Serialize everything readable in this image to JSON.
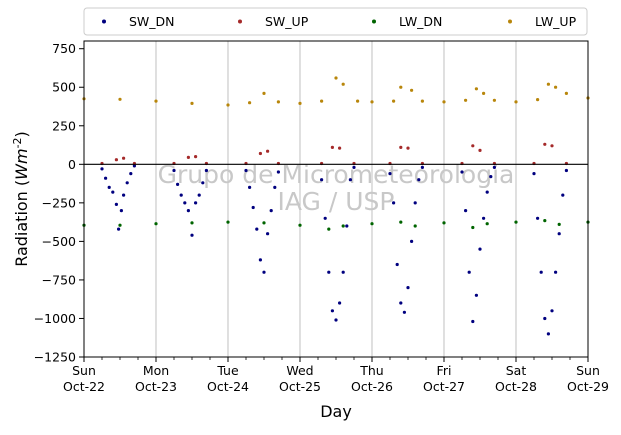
{
  "chart_data": {
    "type": "scatter",
    "title": "",
    "xlabel": "Day",
    "ylabel": "Radiation",
    "ylabel_unit": "Wm",
    "ylabel_unit_exp": "-2",
    "ylim": [
      -1250,
      800
    ],
    "yticks": [
      -1250,
      -1000,
      -750,
      -500,
      -250,
      0,
      250,
      500,
      750
    ],
    "xlim_days": [
      0,
      7
    ],
    "xticks": [
      {
        "day": 0,
        "line1": "Sun",
        "line2": "Oct-22"
      },
      {
        "day": 1,
        "line1": "Mon",
        "line2": "Oct-23"
      },
      {
        "day": 2,
        "line1": "Tue",
        "line2": "Oct-24"
      },
      {
        "day": 3,
        "line1": "Wed",
        "line2": "Oct-25"
      },
      {
        "day": 4,
        "line1": "Thu",
        "line2": "Oct-26"
      },
      {
        "day": 5,
        "line1": "Fri",
        "line2": "Oct-27"
      },
      {
        "day": 6,
        "line1": "Sat",
        "line2": "Oct-28"
      },
      {
        "day": 7,
        "line1": "Sun",
        "line2": "Oct-29"
      }
    ],
    "grid": "vertical",
    "zero_line": true,
    "legend_placement": "top, outside",
    "watermark": [
      "Grupo de Micrometeorologia",
      "IAG / USP"
    ],
    "series": [
      {
        "name": "SW_DN",
        "color": "#00007f",
        "points": [
          [
            0.25,
            -30
          ],
          [
            0.3,
            -90
          ],
          [
            0.35,
            -150
          ],
          [
            0.4,
            -180
          ],
          [
            0.45,
            -260
          ],
          [
            0.48,
            -420
          ],
          [
            0.52,
            -300
          ],
          [
            0.55,
            -200
          ],
          [
            0.6,
            -120
          ],
          [
            0.65,
            -60
          ],
          [
            0.7,
            -10
          ],
          [
            1.25,
            -40
          ],
          [
            1.3,
            -130
          ],
          [
            1.35,
            -200
          ],
          [
            1.4,
            -250
          ],
          [
            1.45,
            -300
          ],
          [
            1.5,
            -460
          ],
          [
            1.55,
            -250
          ],
          [
            1.6,
            -200
          ],
          [
            1.65,
            -120
          ],
          [
            1.7,
            -40
          ],
          [
            2.25,
            -40
          ],
          [
            2.3,
            -150
          ],
          [
            2.35,
            -280
          ],
          [
            2.4,
            -420
          ],
          [
            2.45,
            -620
          ],
          [
            2.5,
            -700
          ],
          [
            2.55,
            -450
          ],
          [
            2.6,
            -300
          ],
          [
            2.65,
            -150
          ],
          [
            2.7,
            -50
          ],
          [
            3.3,
            -100
          ],
          [
            3.35,
            -350
          ],
          [
            3.4,
            -700
          ],
          [
            3.45,
            -950
          ],
          [
            3.5,
            -1010
          ],
          [
            3.55,
            -900
          ],
          [
            3.6,
            -700
          ],
          [
            3.65,
            -400
          ],
          [
            3.7,
            -100
          ],
          [
            3.75,
            -20
          ],
          [
            4.25,
            -60
          ],
          [
            4.3,
            -250
          ],
          [
            4.35,
            -650
          ],
          [
            4.4,
            -900
          ],
          [
            4.45,
            -960
          ],
          [
            4.5,
            -800
          ],
          [
            4.55,
            -500
          ],
          [
            4.6,
            -250
          ],
          [
            4.65,
            -100
          ],
          [
            4.7,
            -20
          ],
          [
            5.25,
            -50
          ],
          [
            5.3,
            -300
          ],
          [
            5.35,
            -700
          ],
          [
            5.4,
            -1020
          ],
          [
            5.45,
            -850
          ],
          [
            5.5,
            -550
          ],
          [
            5.55,
            -350
          ],
          [
            5.6,
            -180
          ],
          [
            5.65,
            -80
          ],
          [
            5.7,
            -20
          ],
          [
            6.25,
            -60
          ],
          [
            6.3,
            -350
          ],
          [
            6.35,
            -700
          ],
          [
            6.4,
            -1000
          ],
          [
            6.45,
            -1100
          ],
          [
            6.5,
            -950
          ],
          [
            6.55,
            -700
          ],
          [
            6.6,
            -450
          ],
          [
            6.65,
            -200
          ],
          [
            6.7,
            -40
          ]
        ]
      },
      {
        "name": "SW_UP",
        "color": "#a52a2a",
        "points": [
          [
            0.25,
            5
          ],
          [
            0.45,
            30
          ],
          [
            0.55,
            40
          ],
          [
            0.7,
            5
          ],
          [
            1.25,
            5
          ],
          [
            1.45,
            45
          ],
          [
            1.55,
            50
          ],
          [
            1.7,
            5
          ],
          [
            2.25,
            5
          ],
          [
            2.45,
            70
          ],
          [
            2.55,
            85
          ],
          [
            2.7,
            5
          ],
          [
            3.3,
            5
          ],
          [
            3.45,
            110
          ],
          [
            3.55,
            105
          ],
          [
            3.75,
            5
          ],
          [
            4.25,
            5
          ],
          [
            4.4,
            110
          ],
          [
            4.5,
            105
          ],
          [
            4.7,
            5
          ],
          [
            5.25,
            5
          ],
          [
            5.4,
            120
          ],
          [
            5.5,
            90
          ],
          [
            5.7,
            5
          ],
          [
            6.25,
            5
          ],
          [
            6.4,
            130
          ],
          [
            6.5,
            120
          ],
          [
            6.7,
            5
          ]
        ]
      },
      {
        "name": "LW_DN",
        "color": "#006400",
        "points": [
          [
            0,
            -395
          ],
          [
            0.5,
            -395
          ],
          [
            1,
            -385
          ],
          [
            1.5,
            -380
          ],
          [
            2,
            -375
          ],
          [
            2.5,
            -380
          ],
          [
            3,
            -395
          ],
          [
            3.4,
            -420
          ],
          [
            3.6,
            -400
          ],
          [
            4,
            -385
          ],
          [
            4.4,
            -375
          ],
          [
            4.6,
            -400
          ],
          [
            5,
            -380
          ],
          [
            5.4,
            -410
          ],
          [
            5.6,
            -385
          ],
          [
            6,
            -375
          ],
          [
            6.4,
            -365
          ],
          [
            6.6,
            -390
          ],
          [
            7,
            -375
          ]
        ]
      },
      {
        "name": "LW_UP",
        "color": "#b8860b",
        "points": [
          [
            0,
            425
          ],
          [
            0.5,
            422
          ],
          [
            1,
            410
          ],
          [
            1.5,
            395
          ],
          [
            2,
            385
          ],
          [
            2.3,
            400
          ],
          [
            2.5,
            460
          ],
          [
            2.7,
            405
          ],
          [
            3,
            395
          ],
          [
            3.3,
            410
          ],
          [
            3.5,
            560
          ],
          [
            3.6,
            520
          ],
          [
            3.8,
            410
          ],
          [
            4,
            405
          ],
          [
            4.3,
            410
          ],
          [
            4.4,
            500
          ],
          [
            4.55,
            480
          ],
          [
            4.7,
            410
          ],
          [
            5,
            405
          ],
          [
            5.3,
            415
          ],
          [
            5.45,
            490
          ],
          [
            5.55,
            460
          ],
          [
            5.7,
            415
          ],
          [
            6,
            405
          ],
          [
            6.3,
            420
          ],
          [
            6.45,
            520
          ],
          [
            6.55,
            500
          ],
          [
            6.7,
            460
          ],
          [
            7,
            430
          ]
        ]
      }
    ]
  }
}
